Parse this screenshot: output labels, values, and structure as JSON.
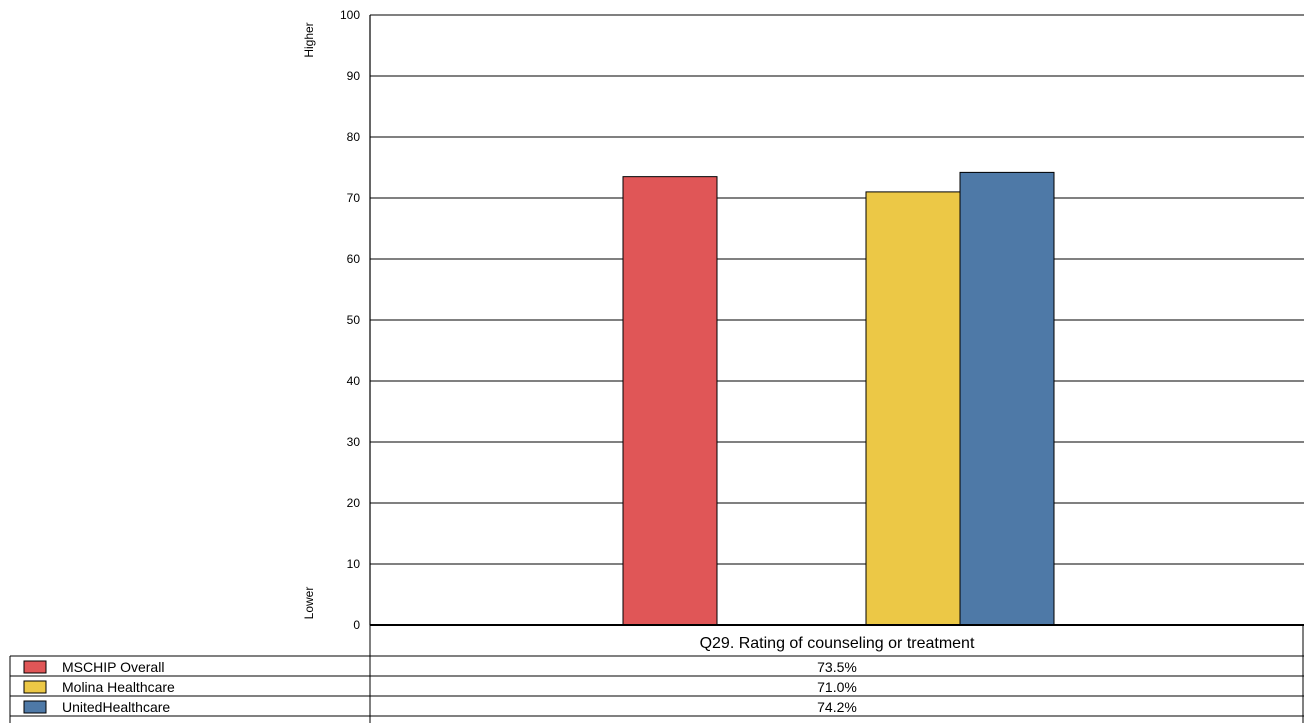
{
  "chart_data": {
    "type": "bar",
    "categories": [
      "Q29. Rating of counseling or treatment"
    ],
    "series": [
      {
        "name": "MSCHIP Overall",
        "values": [
          73.5
        ],
        "label": "73.5%",
        "color": "#e05657"
      },
      {
        "name": "Molina Healthcare",
        "values": [
          71.0
        ],
        "label": "71.0%",
        "color": "#ecc846"
      },
      {
        "name": "UnitedHealthcare",
        "values": [
          74.2
        ],
        "label": "74.2%",
        "color": "#4e79a7"
      }
    ],
    "ylim": [
      0,
      100
    ],
    "yticks": [
      0,
      10,
      20,
      30,
      40,
      50,
      60,
      70,
      80,
      90,
      100
    ],
    "y_top_label": "Higher",
    "y_bottom_label": "Lower",
    "grid": true,
    "legend_placement": "bottom-left data table"
  }
}
